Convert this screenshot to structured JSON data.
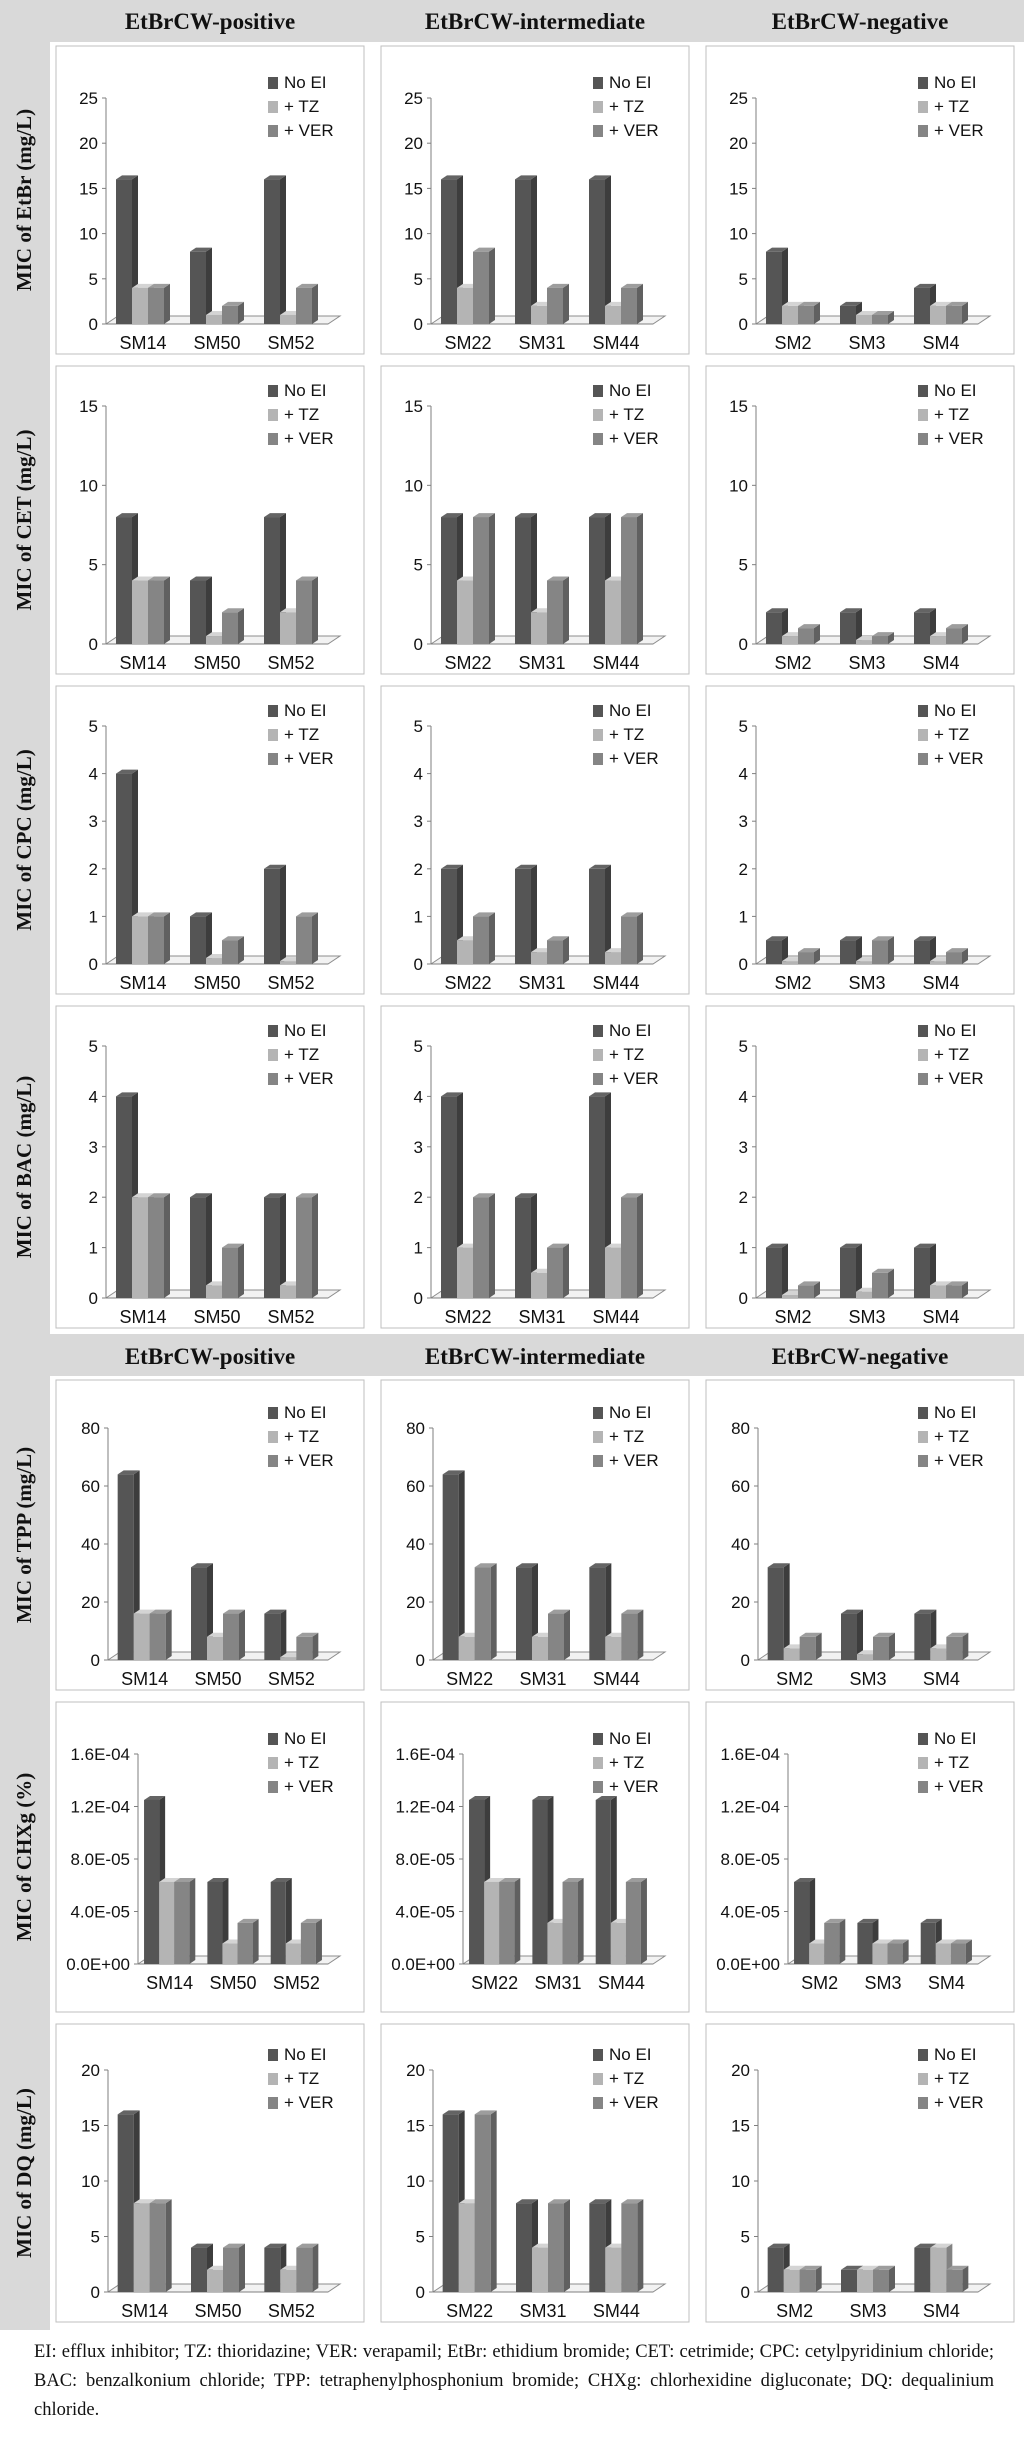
{
  "header_rows": [
    [
      "EtBrCW-positive",
      "EtBrCW-intermediate",
      "EtBrCW-negative"
    ],
    [
      "EtBrCW-positive",
      "EtBrCW-intermediate",
      "EtBrCW-negative"
    ]
  ],
  "legend": [
    "No EI",
    "+ TZ",
    "+ VER"
  ],
  "colors": {
    "No EI": "#555555",
    "+ TZ": "#b4b4b4",
    "+ VER": "#858585",
    "band": "#d9d9d9"
  },
  "footnote": "EI: efflux inhibitor; TZ: thioridazine; VER: verapamil; EtBr: ethidium bromide; CET: cetrimide; CPC: cetylpyridinium chloride; BAC: benzalkonium chloride; TPP: tetraphenylphosphonium bromide; CHXg: chlorhexidine digluconate; DQ: dequalinium chloride.",
  "chart_data": [
    {
      "type": "bar",
      "ylabel": "MIC of EtBr (mg/L)",
      "ylim": [
        0,
        25
      ],
      "yticks": [
        "0",
        "5",
        "10",
        "15",
        "20",
        "25"
      ],
      "panels": [
        {
          "title": "EtBrCW-positive",
          "categories": [
            "SM14",
            "SM50",
            "SM52"
          ],
          "series": [
            {
              "name": "No EI",
              "values": [
                16,
                8,
                16
              ]
            },
            {
              "name": "+ TZ",
              "values": [
                4,
                1,
                1
              ]
            },
            {
              "name": "+ VER",
              "values": [
                4,
                2,
                4
              ]
            }
          ]
        },
        {
          "title": "EtBrCW-intermediate",
          "categories": [
            "SM22",
            "SM31",
            "SM44"
          ],
          "series": [
            {
              "name": "No EI",
              "values": [
                16,
                16,
                16
              ]
            },
            {
              "name": "+ TZ",
              "values": [
                4,
                2,
                2
              ]
            },
            {
              "name": "+ VER",
              "values": [
                8,
                4,
                4
              ]
            }
          ]
        },
        {
          "title": "EtBrCW-negative",
          "categories": [
            "SM2",
            "SM3",
            "SM4"
          ],
          "series": [
            {
              "name": "No EI",
              "values": [
                8,
                2,
                4
              ]
            },
            {
              "name": "+ TZ",
              "values": [
                2,
                1,
                2
              ]
            },
            {
              "name": "+ VER",
              "values": [
                2,
                1,
                2
              ]
            }
          ]
        }
      ]
    },
    {
      "type": "bar",
      "ylabel": "MIC of CET (mg/L)",
      "ylim": [
        0,
        15
      ],
      "yticks": [
        "0",
        "5",
        "10",
        "15"
      ],
      "panels": [
        {
          "title": "EtBrCW-positive",
          "categories": [
            "SM14",
            "SM50",
            "SM52"
          ],
          "series": [
            {
              "name": "No EI",
              "values": [
                8,
                4,
                8
              ]
            },
            {
              "name": "+ TZ",
              "values": [
                4,
                0.5,
                2
              ]
            },
            {
              "name": "+ VER",
              "values": [
                4,
                2,
                4
              ]
            }
          ]
        },
        {
          "title": "EtBrCW-intermediate",
          "categories": [
            "SM22",
            "SM31",
            "SM44"
          ],
          "series": [
            {
              "name": "No EI",
              "values": [
                8,
                8,
                8
              ]
            },
            {
              "name": "+ TZ",
              "values": [
                4,
                2,
                4
              ]
            },
            {
              "name": "+ VER",
              "values": [
                8,
                4,
                8
              ]
            }
          ]
        },
        {
          "title": "EtBrCW-negative",
          "categories": [
            "SM2",
            "SM3",
            "SM4"
          ],
          "series": [
            {
              "name": "No EI",
              "values": [
                2,
                2,
                2
              ]
            },
            {
              "name": "+ TZ",
              "values": [
                0.5,
                0.25,
                0.5
              ]
            },
            {
              "name": "+ VER",
              "values": [
                1,
                0.5,
                1
              ]
            }
          ]
        }
      ]
    },
    {
      "type": "bar",
      "ylabel": "MIC of CPC (mg/L)",
      "ylim": [
        0,
        5
      ],
      "yticks": [
        "0",
        "1",
        "2",
        "3",
        "4",
        "5"
      ],
      "panels": [
        {
          "title": "EtBrCW-positive",
          "categories": [
            "SM14",
            "SM50",
            "SM52"
          ],
          "series": [
            {
              "name": "No EI",
              "values": [
                4,
                1,
                2
              ]
            },
            {
              "name": "+ TZ",
              "values": [
                1,
                0.125,
                0.06
              ]
            },
            {
              "name": "+ VER",
              "values": [
                1,
                0.5,
                1
              ]
            }
          ]
        },
        {
          "title": "EtBrCW-intermediate",
          "categories": [
            "SM22",
            "SM31",
            "SM44"
          ],
          "series": [
            {
              "name": "No EI",
              "values": [
                2,
                2,
                2
              ]
            },
            {
              "name": "+ TZ",
              "values": [
                0.5,
                0.25,
                0.25
              ]
            },
            {
              "name": "+ VER",
              "values": [
                1,
                0.5,
                1
              ]
            }
          ]
        },
        {
          "title": "EtBrCW-negative",
          "categories": [
            "SM2",
            "SM3",
            "SM4"
          ],
          "series": [
            {
              "name": "No EI",
              "values": [
                0.5,
                0.5,
                0.5
              ]
            },
            {
              "name": "+ TZ",
              "values": [
                0.06,
                0.06,
                0.06
              ]
            },
            {
              "name": "+ VER",
              "values": [
                0.25,
                0.5,
                0.25
              ]
            }
          ]
        }
      ]
    },
    {
      "type": "bar",
      "ylabel": "MIC of BAC (mg/L)",
      "ylim": [
        0,
        5
      ],
      "yticks": [
        "0",
        "1",
        "2",
        "3",
        "4",
        "5"
      ],
      "panels": [
        {
          "title": "EtBrCW-positive",
          "categories": [
            "SM14",
            "SM50",
            "SM52"
          ],
          "series": [
            {
              "name": "No EI",
              "values": [
                4,
                2,
                2
              ]
            },
            {
              "name": "+ TZ",
              "values": [
                2,
                0.25,
                0.25
              ]
            },
            {
              "name": "+ VER",
              "values": [
                2,
                1,
                2
              ]
            }
          ]
        },
        {
          "title": "EtBrCW-intermediate",
          "categories": [
            "SM22",
            "SM31",
            "SM44"
          ],
          "series": [
            {
              "name": "No EI",
              "values": [
                4,
                2,
                4
              ]
            },
            {
              "name": "+ TZ",
              "values": [
                1,
                0.5,
                1
              ]
            },
            {
              "name": "+ VER",
              "values": [
                2,
                1,
                2
              ]
            }
          ]
        },
        {
          "title": "EtBrCW-negative",
          "categories": [
            "SM2",
            "SM3",
            "SM4"
          ],
          "series": [
            {
              "name": "No EI",
              "values": [
                1,
                1,
                1
              ]
            },
            {
              "name": "+ TZ",
              "values": [
                0.06,
                0.125,
                0.25
              ]
            },
            {
              "name": "+ VER",
              "values": [
                0.25,
                0.5,
                0.25
              ]
            }
          ]
        }
      ]
    },
    {
      "type": "bar",
      "ylabel": "MIC of TPP (mg/L)",
      "ylim": [
        0,
        80
      ],
      "yticks": [
        "0",
        "20",
        "40",
        "60",
        "80"
      ],
      "panels": [
        {
          "title": "EtBrCW-positive",
          "categories": [
            "SM14",
            "SM50",
            "SM52"
          ],
          "series": [
            {
              "name": "No EI",
              "values": [
                64,
                32,
                16
              ]
            },
            {
              "name": "+ TZ",
              "values": [
                16,
                8,
                1
              ]
            },
            {
              "name": "+ VER",
              "values": [
                16,
                16,
                8
              ]
            }
          ]
        },
        {
          "title": "EtBrCW-intermediate",
          "categories": [
            "SM22",
            "SM31",
            "SM44"
          ],
          "series": [
            {
              "name": "No EI",
              "values": [
                64,
                32,
                32
              ]
            },
            {
              "name": "+ TZ",
              "values": [
                8,
                8,
                8
              ]
            },
            {
              "name": "+ VER",
              "values": [
                32,
                16,
                16
              ]
            }
          ]
        },
        {
          "title": "EtBrCW-negative",
          "categories": [
            "SM2",
            "SM3",
            "SM4"
          ],
          "series": [
            {
              "name": "No EI",
              "values": [
                32,
                16,
                16
              ]
            },
            {
              "name": "+ TZ",
              "values": [
                4,
                2,
                4
              ]
            },
            {
              "name": "+ VER",
              "values": [
                8,
                8,
                8
              ]
            }
          ]
        }
      ]
    },
    {
      "type": "bar",
      "ylabel": "MIC of CHXg (%)",
      "ylim": [
        0,
        0.00016
      ],
      "yticks": [
        "0.0E+00",
        "4.0E-05",
        "8.0E-05",
        "1.2E-04",
        "1.6E-04"
      ],
      "panels": [
        {
          "title": "EtBrCW-positive",
          "categories": [
            "SM14",
            "SM50",
            "SM52"
          ],
          "series": [
            {
              "name": "No EI",
              "values": [
                0.000125,
                6.25e-05,
                6.25e-05
              ]
            },
            {
              "name": "+ TZ",
              "values": [
                6.25e-05,
                1.56e-05,
                1.56e-05
              ]
            },
            {
              "name": "+ VER",
              "values": [
                6.25e-05,
                3.13e-05,
                3.13e-05
              ]
            }
          ]
        },
        {
          "title": "EtBrCW-intermediate",
          "categories": [
            "SM22",
            "SM31",
            "SM44"
          ],
          "series": [
            {
              "name": "No EI",
              "values": [
                0.000125,
                0.000125,
                0.000125
              ]
            },
            {
              "name": "+ TZ",
              "values": [
                6.25e-05,
                3.13e-05,
                3.13e-05
              ]
            },
            {
              "name": "+ VER",
              "values": [
                6.25e-05,
                6.25e-05,
                6.25e-05
              ]
            }
          ]
        },
        {
          "title": "EtBrCW-negative",
          "categories": [
            "SM2",
            "SM3",
            "SM4"
          ],
          "series": [
            {
              "name": "No EI",
              "values": [
                6.25e-05,
                3.13e-05,
                3.13e-05
              ]
            },
            {
              "name": "+ TZ",
              "values": [
                1.56e-05,
                1.56e-05,
                1.56e-05
              ]
            },
            {
              "name": "+ VER",
              "values": [
                3.13e-05,
                1.56e-05,
                1.56e-05
              ]
            }
          ]
        }
      ]
    },
    {
      "type": "bar",
      "ylabel": "MIC of DQ (mg/L)",
      "ylim": [
        0,
        20
      ],
      "yticks": [
        "0",
        "5",
        "10",
        "15",
        "20"
      ],
      "panels": [
        {
          "title": "EtBrCW-positive",
          "categories": [
            "SM14",
            "SM50",
            "SM52"
          ],
          "series": [
            {
              "name": "No EI",
              "values": [
                16,
                4,
                4
              ]
            },
            {
              "name": "+ TZ",
              "values": [
                8,
                2,
                2
              ]
            },
            {
              "name": "+ VER",
              "values": [
                8,
                4,
                4
              ]
            }
          ]
        },
        {
          "title": "EtBrCW-intermediate",
          "categories": [
            "SM22",
            "SM31",
            "SM44"
          ],
          "series": [
            {
              "name": "No EI",
              "values": [
                16,
                8,
                8
              ]
            },
            {
              "name": "+ TZ",
              "values": [
                8,
                4,
                4
              ]
            },
            {
              "name": "+ VER",
              "values": [
                16,
                8,
                8
              ]
            }
          ]
        },
        {
          "title": "EtBrCW-negative",
          "categories": [
            "SM2",
            "SM3",
            "SM4"
          ],
          "series": [
            {
              "name": "No EI",
              "values": [
                4,
                2,
                4
              ]
            },
            {
              "name": "+ TZ",
              "values": [
                2,
                2,
                4
              ]
            },
            {
              "name": "+ VER",
              "values": [
                2,
                2,
                2
              ]
            }
          ]
        }
      ]
    }
  ]
}
